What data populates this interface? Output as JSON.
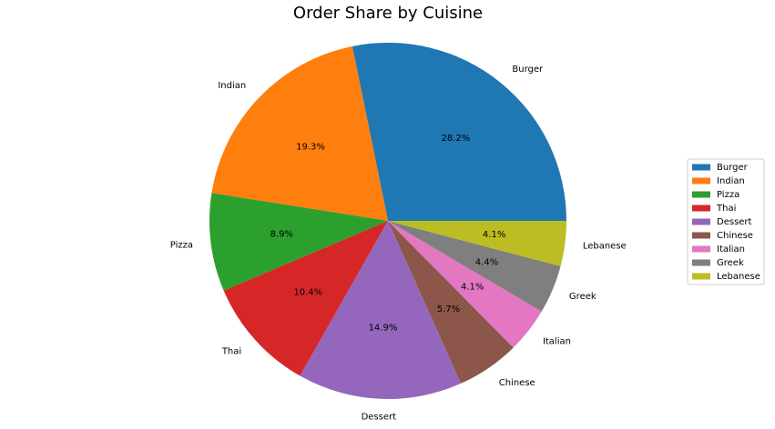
{
  "chart_data": {
    "type": "pie",
    "title": "Order Share by Cuisine",
    "categories": [
      "Burger",
      "Indian",
      "Pizza",
      "Thai",
      "Dessert",
      "Chinese",
      "Italian",
      "Greek",
      "Lebanese"
    ],
    "values": [
      28.2,
      19.3,
      8.9,
      10.4,
      14.9,
      5.7,
      4.1,
      4.4,
      4.1
    ],
    "value_labels": [
      "28.2%",
      "19.3%",
      "8.9%",
      "10.4%",
      "14.9%",
      "5.7%",
      "4.1%",
      "4.4%",
      "4.1%"
    ],
    "colors": [
      "#1f77b4",
      "#ff7f0e",
      "#2ca02c",
      "#d62728",
      "#9467bd",
      "#8c564b",
      "#e377c2",
      "#7f7f7f",
      "#bcbd22"
    ],
    "legend": "right"
  }
}
